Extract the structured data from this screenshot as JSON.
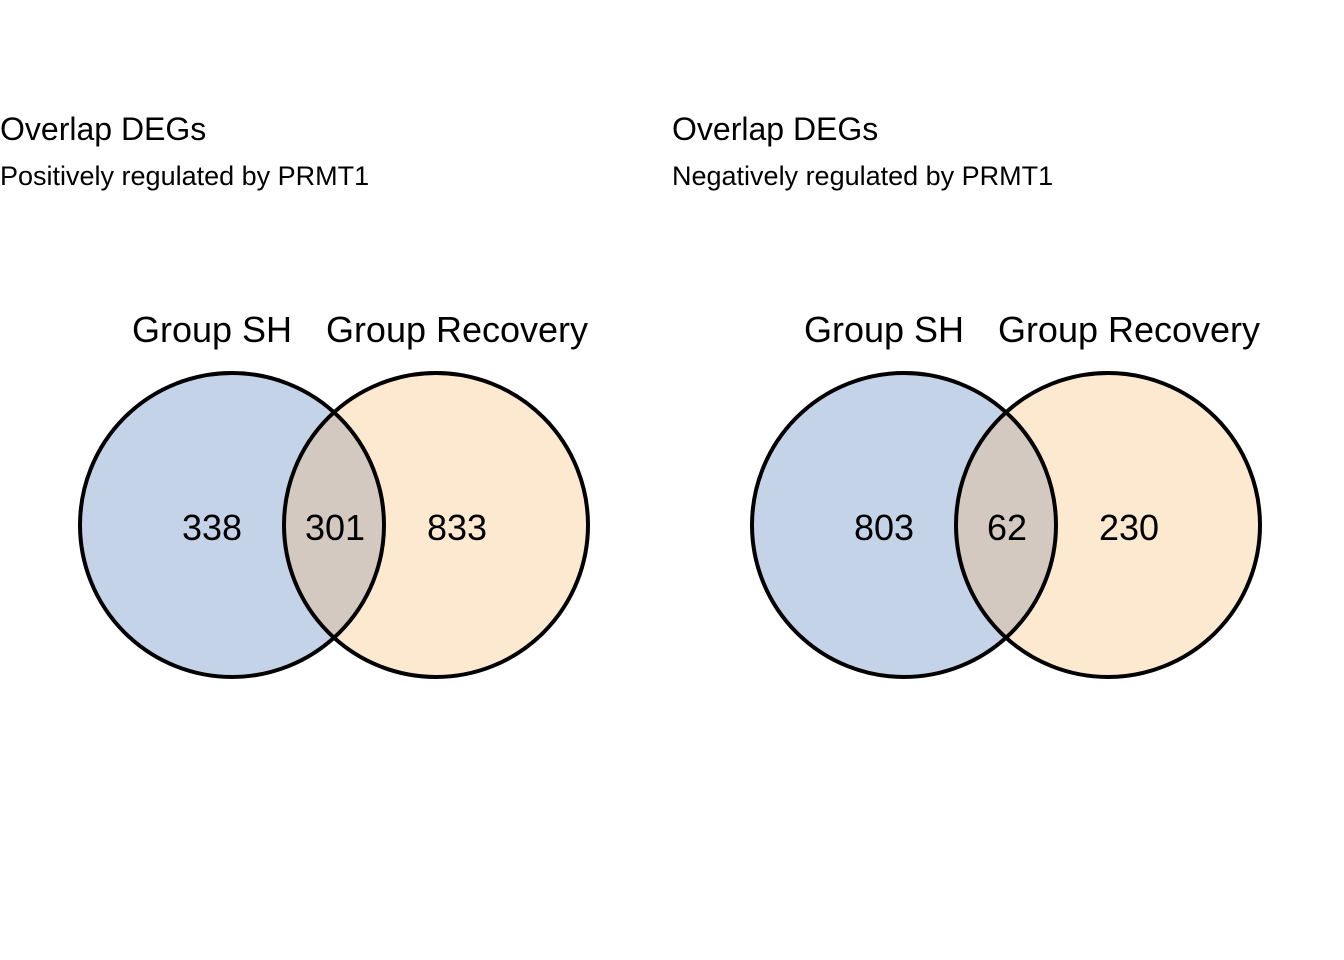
{
  "colors": {
    "set_a_fill": "#c4d3e8",
    "set_b_fill": "#fde8d0",
    "overlap_fill": "#d4c9c0",
    "stroke": "#000000"
  },
  "panels": [
    {
      "title": "Overlap DEGs",
      "subtitle": "Positively regulated by PRMT1",
      "set_a": {
        "label": "Group SH",
        "only": "338"
      },
      "set_b": {
        "label": "Group Recovery",
        "only": "833"
      },
      "overlap": "301"
    },
    {
      "title": "Overlap DEGs",
      "subtitle": "Negatively regulated by PRMT1",
      "set_a": {
        "label": "Group SH",
        "only": "803"
      },
      "set_b": {
        "label": "Group Recovery",
        "only": "230"
      },
      "overlap": "62"
    }
  ]
}
